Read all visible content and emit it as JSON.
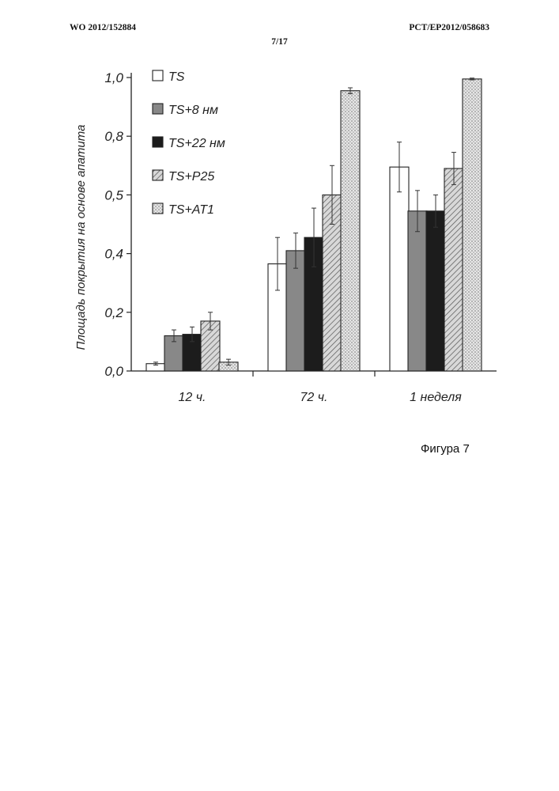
{
  "header": {
    "left": "WO 2012/152884",
    "right": "PCT/EP2012/058683",
    "page": "7/17"
  },
  "caption": "Фигура 7",
  "chart_data": {
    "type": "bar",
    "title": "",
    "xlabel": "",
    "ylabel": "Площадь покрытия на основе апатита",
    "ylim": [
      0.0,
      1.0
    ],
    "yticks": [
      "0,0",
      "0,2",
      "0,4",
      "0,5",
      "0,8",
      "1,0"
    ],
    "categories": [
      "12 ч.",
      "72 ч.",
      "1 неделя"
    ],
    "legend_position": "top-left",
    "series": [
      {
        "name": "TS",
        "pattern": "white",
        "values": [
          0.025,
          0.365,
          0.695
        ],
        "errors": [
          0.005,
          0.09,
          0.085
        ]
      },
      {
        "name": "TS+8 нм",
        "pattern": "gray",
        "values": [
          0.12,
          0.41,
          0.545
        ],
        "errors": [
          0.02,
          0.06,
          0.07
        ]
      },
      {
        "name": "TS+22 нм",
        "pattern": "black",
        "values": [
          0.125,
          0.455,
          0.545
        ],
        "errors": [
          0.025,
          0.1,
          0.055
        ]
      },
      {
        "name": "TS+P25",
        "pattern": "hatch",
        "values": [
          0.17,
          0.6,
          0.69
        ],
        "errors": [
          0.03,
          0.1,
          0.055
        ]
      },
      {
        "name": "TS+AT1",
        "pattern": "dotted",
        "values": [
          0.03,
          0.955,
          0.995
        ],
        "errors": [
          0.01,
          0.01,
          0.003
        ]
      }
    ]
  }
}
